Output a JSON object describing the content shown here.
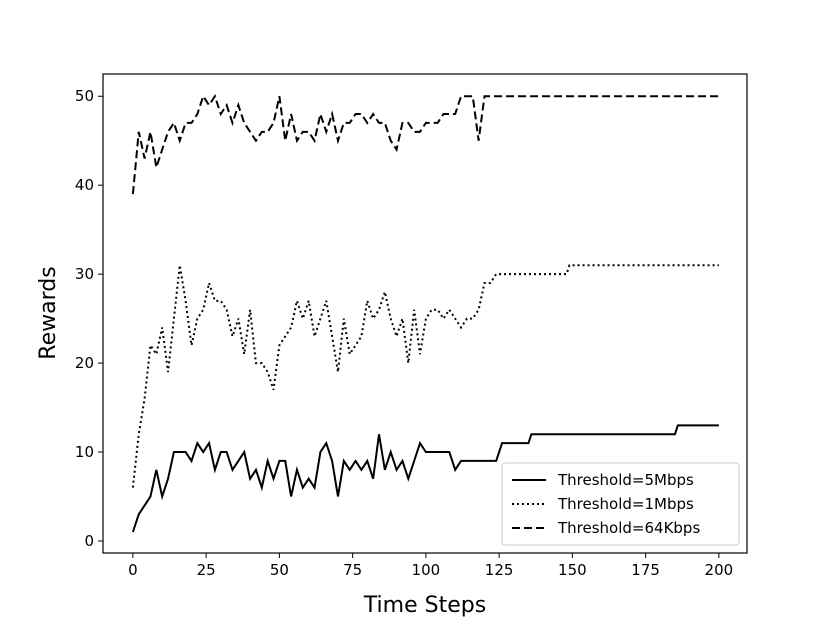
{
  "chart_data": {
    "type": "line",
    "xlabel": "Time Steps",
    "ylabel": "Rewards",
    "x": [
      0,
      2,
      4,
      6,
      8,
      10,
      12,
      14,
      16,
      18,
      20,
      22,
      24,
      26,
      28,
      30,
      32,
      34,
      36,
      38,
      40,
      42,
      44,
      46,
      48,
      50,
      52,
      54,
      56,
      58,
      60,
      62,
      64,
      66,
      68,
      70,
      72,
      74,
      76,
      78,
      80,
      82,
      84,
      86,
      88,
      90,
      92,
      94,
      96,
      98,
      100,
      102,
      104,
      106,
      108,
      110,
      112,
      114,
      116,
      118,
      120,
      122,
      124,
      126,
      128,
      135,
      136,
      148,
      149,
      185,
      186,
      200
    ],
    "series": [
      {
        "name": "Threshold=5Mbps",
        "color": "#000000",
        "linestyle": "solid",
        "values": [
          1,
          3,
          4,
          5,
          8,
          5,
          7,
          10,
          10,
          10,
          9,
          11,
          10,
          11,
          8,
          10,
          10,
          8,
          9,
          10,
          7,
          8,
          6,
          9,
          7,
          9,
          9,
          5,
          8,
          6,
          7,
          6,
          10,
          11,
          9,
          5,
          9,
          8,
          9,
          8,
          9,
          7,
          12,
          8,
          10,
          8,
          9,
          7,
          9,
          11,
          10,
          10,
          10,
          10,
          10,
          8,
          9,
          9,
          9,
          9,
          9,
          9,
          9,
          11,
          11,
          11,
          12,
          12,
          12,
          12,
          13,
          13
        ]
      },
      {
        "name": "Threshold=1Mbps",
        "color": "#000000",
        "linestyle": "dotted",
        "values": [
          6,
          12,
          16,
          22,
          21,
          24,
          19,
          25,
          31,
          27,
          22,
          25,
          26,
          29,
          27,
          27,
          26,
          23,
          25,
          21,
          26,
          20,
          20,
          19,
          17,
          22,
          23,
          24,
          27,
          25,
          27,
          23,
          25,
          27,
          23,
          19,
          25,
          21,
          22,
          23,
          27,
          25,
          26,
          28,
          25,
          23,
          25,
          20,
          26,
          21,
          25,
          26,
          26,
          25,
          26,
          25,
          24,
          25,
          25,
          26,
          29,
          29,
          30,
          30,
          30,
          30,
          30,
          30,
          31,
          31,
          31,
          31
        ]
      },
      {
        "name": "Threshold=64Kbps",
        "color": "#000000",
        "linestyle": "dashed",
        "values": [
          39,
          46,
          43,
          46,
          42,
          44,
          46,
          47,
          45,
          47,
          47,
          48,
          50,
          49,
          50,
          48,
          49,
          47,
          49,
          47,
          46,
          45,
          46,
          46,
          47,
          50,
          45,
          48,
          45,
          46,
          46,
          45,
          48,
          46,
          48,
          45,
          47,
          47,
          48,
          48,
          47,
          48,
          47,
          47,
          45,
          44,
          47,
          47,
          46,
          46,
          47,
          47,
          47,
          48,
          48,
          48,
          50,
          50,
          50,
          45,
          50,
          50,
          50,
          50,
          50,
          50,
          50,
          50,
          50,
          50,
          50,
          50
        ]
      }
    ],
    "xlim": [
      -10.2,
      209.6
    ],
    "xticks": [
      0,
      25,
      50,
      75,
      100,
      125,
      150,
      175,
      200
    ],
    "ylim": [
      -1.35,
      52.5
    ],
    "yticks": [
      0,
      10,
      20,
      30,
      40,
      50
    ],
    "legend": "lower right"
  }
}
